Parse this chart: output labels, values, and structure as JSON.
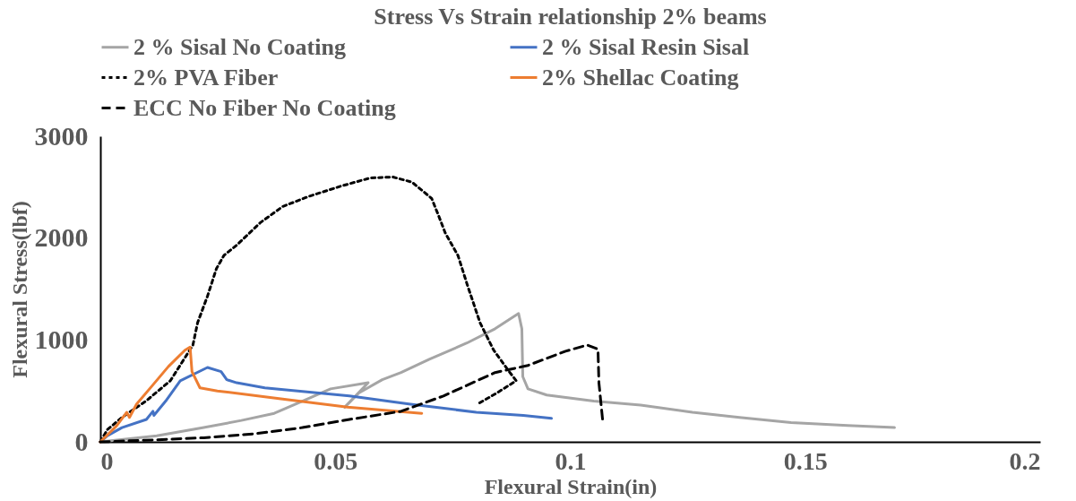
{
  "chart_data": {
    "type": "line",
    "title": "Stress Vs Strain relationship 2% beams",
    "xlabel": "Flexural Strain(in)",
    "ylabel": "Flexural Stress(lbf)",
    "xlim": [
      0,
      0.2
    ],
    "xticks": [
      0,
      0.05,
      0.1,
      0.15,
      0.2
    ],
    "ylim": [
      0,
      3000
    ],
    "yticks": [
      0,
      1000,
      2000,
      3000
    ],
    "grid": false,
    "legend": "top",
    "marker": "none",
    "series": [
      {
        "name": "2 % Sisal No Coating",
        "color": "#a5a5a5",
        "line_style": "solid",
        "x": [
          0,
          0.012,
          0.022,
          0.03,
          0.037,
          0.043,
          0.049,
          0.057,
          0.052,
          0.055,
          0.06,
          0.064,
          0.07,
          0.078,
          0.084,
          0.089,
          0.0897,
          0.0899,
          0.091,
          0.095,
          0.105,
          0.115,
          0.126,
          0.136,
          0.147,
          0.159,
          0.169
        ],
        "values": [
          0,
          60,
          140,
          210,
          280,
          400,
          520,
          580,
          340,
          480,
          610,
          680,
          810,
          970,
          1110,
          1260,
          1110,
          640,
          520,
          460,
          400,
          360,
          290,
          240,
          190,
          160,
          140
        ]
      },
      {
        "name": "2 % Sisal Resin Sisal",
        "color": "#4472c4",
        "line_style": "solid",
        "x": [
          0,
          0.0015,
          0.0046,
          0.0098,
          0.0112,
          0.0114,
          0.0139,
          0.017,
          0.0228,
          0.0257,
          0.0269,
          0.029,
          0.035,
          0.042,
          0.053,
          0.066,
          0.08,
          0.09,
          0.096
        ],
        "values": [
          0,
          60,
          140,
          220,
          300,
          260,
          400,
          600,
          730,
          690,
          610,
          580,
          530,
          500,
          450,
          370,
          290,
          260,
          230
        ]
      },
      {
        "name": "2% PVA Fiber",
        "color": "#000000",
        "line_style": "dotted",
        "x": [
          0,
          0.0015,
          0.0046,
          0.0097,
          0.0149,
          0.0197,
          0.0207,
          0.0228,
          0.0247,
          0.0263,
          0.029,
          0.034,
          0.0388,
          0.0444,
          0.0512,
          0.0574,
          0.0622,
          0.0663,
          0.0705,
          0.0719,
          0.0734,
          0.0761,
          0.0781,
          0.0808,
          0.0837,
          0.087,
          0.0885,
          0.0844,
          0.0806
        ],
        "values": [
          0,
          120,
          240,
          400,
          600,
          950,
          1170,
          1430,
          1700,
          1830,
          1930,
          2150,
          2310,
          2410,
          2510,
          2590,
          2600,
          2550,
          2390,
          2230,
          2050,
          1830,
          1540,
          1170,
          900,
          690,
          600,
          480,
          380
        ]
      },
      {
        "name": "2% Shellac Coating",
        "color": "#ed7d31",
        "line_style": "solid",
        "x": [
          0,
          0.0035,
          0.0056,
          0.0062,
          0.0077,
          0.0112,
          0.0145,
          0.018,
          0.0191,
          0.0195,
          0.0212,
          0.0249,
          0.0388,
          0.0526,
          0.0684
        ],
        "values": [
          0,
          160,
          290,
          240,
          370,
          560,
          740,
          900,
          930,
          690,
          530,
          500,
          420,
          340,
          280
        ]
      },
      {
        "name": "ECC No Fiber No Coating",
        "color": "#000000",
        "line_style": "dashed",
        "x": [
          0,
          0.012,
          0.022,
          0.033,
          0.043,
          0.053,
          0.064,
          0.073,
          0.084,
          0.091,
          0.095,
          0.099,
          0.1036,
          0.1059,
          0.1061,
          0.1069
        ],
        "values": [
          0,
          20,
          40,
          80,
          140,
          220,
          300,
          450,
          680,
          750,
          820,
          890,
          950,
          910,
          580,
          210
        ]
      }
    ]
  }
}
